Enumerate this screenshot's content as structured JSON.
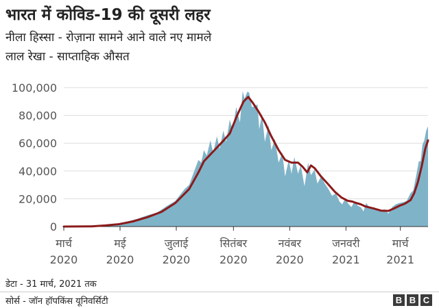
{
  "chart_data": {
    "type": "area",
    "title": "भारत में कोविड-19 की दूसरी लहर",
    "subtitle_lines": [
      "नीला हिस्सा - रोज़ाना सामने आने वाले नए मामले",
      "लाल रेखा - साप्ताहिक औसत"
    ],
    "xlabel": "",
    "ylabel": "",
    "ylim": [
      0,
      100000
    ],
    "yticks": [
      0,
      20000,
      40000,
      60000,
      80000,
      100000
    ],
    "ytick_labels": [
      "0",
      "20,000",
      "40,000",
      "60,000",
      "80,000",
      "100,000"
    ],
    "x_range": [
      "2020-03-01",
      "2021-03-31"
    ],
    "xticks": [
      {
        "date": "2020-03-01",
        "line1": "मार्च",
        "line2": "2020"
      },
      {
        "date": "2020-05-01",
        "line1": "मई",
        "line2": "2020"
      },
      {
        "date": "2020-07-01",
        "line1": "जुलाई",
        "line2": "2020"
      },
      {
        "date": "2020-09-01",
        "line1": "सितंबर",
        "line2": "2020"
      },
      {
        "date": "2020-11-01",
        "line1": "नवंबर",
        "line2": "2020"
      },
      {
        "date": "2021-01-01",
        "line1": "जनवरी",
        "line2": "2021"
      },
      {
        "date": "2021-03-01",
        "line1": "मार्च",
        "line2": "2021"
      }
    ],
    "grid": true,
    "series": [
      {
        "color": "#7fb3c8",
        "kind": "area",
        "points": [
          [
            "2020-03-01",
            0
          ],
          [
            "2020-03-15",
            20
          ],
          [
            "2020-03-31",
            200
          ],
          [
            "2020-04-10",
            700
          ],
          [
            "2020-04-20",
            1300
          ],
          [
            "2020-04-30",
            1900
          ],
          [
            "2020-05-10",
            3800
          ],
          [
            "2020-05-20",
            5600
          ],
          [
            "2020-05-31",
            8200
          ],
          [
            "2020-06-10",
            10000
          ],
          [
            "2020-06-20",
            14500
          ],
          [
            "2020-06-30",
            18500
          ],
          [
            "2020-07-10",
            27000
          ],
          [
            "2020-07-15",
            30000
          ],
          [
            "2020-07-20",
            39000
          ],
          [
            "2020-07-25",
            48000
          ],
          [
            "2020-07-28",
            46000
          ],
          [
            "2020-07-31",
            55000
          ],
          [
            "2020-08-03",
            51000
          ],
          [
            "2020-08-07",
            62000
          ],
          [
            "2020-08-10",
            53000
          ],
          [
            "2020-08-14",
            65000
          ],
          [
            "2020-08-17",
            56000
          ],
          [
            "2020-08-21",
            69000
          ],
          [
            "2020-08-24",
            61000
          ],
          [
            "2020-08-28",
            77000
          ],
          [
            "2020-08-31",
            69000
          ],
          [
            "2020-09-04",
            86000
          ],
          [
            "2020-09-08",
            75000
          ],
          [
            "2020-09-11",
            97500
          ],
          [
            "2020-09-13",
            92000
          ],
          [
            "2020-09-16",
            97000
          ],
          [
            "2020-09-18",
            96500
          ],
          [
            "2020-09-21",
            86000
          ],
          [
            "2020-09-24",
            86500
          ],
          [
            "2020-09-27",
            88000
          ],
          [
            "2020-09-29",
            70000
          ],
          [
            "2020-10-02",
            81000
          ],
          [
            "2020-10-05",
            61000
          ],
          [
            "2020-10-09",
            73000
          ],
          [
            "2020-10-12",
            55000
          ],
          [
            "2020-10-16",
            63000
          ],
          [
            "2020-10-20",
            46000
          ],
          [
            "2020-10-24",
            53000
          ],
          [
            "2020-10-27",
            36000
          ],
          [
            "2020-10-31",
            48000
          ],
          [
            "2020-11-03",
            38000
          ],
          [
            "2020-11-06",
            50000
          ],
          [
            "2020-11-10",
            38000
          ],
          [
            "2020-11-13",
            44000
          ],
          [
            "2020-11-17",
            29000
          ],
          [
            "2020-11-21",
            46000
          ],
          [
            "2020-11-24",
            37000
          ],
          [
            "2020-11-28",
            41000
          ],
          [
            "2020-12-01",
            31000
          ],
          [
            "2020-12-05",
            36000
          ],
          [
            "2020-12-09",
            31000
          ],
          [
            "2020-12-13",
            27000
          ],
          [
            "2020-12-17",
            22000
          ],
          [
            "2020-12-21",
            24000
          ],
          [
            "2020-12-25",
            18000
          ],
          [
            "2020-12-28",
            16000
          ],
          [
            "2020-12-31",
            20000
          ],
          [
            "2021-01-04",
            16000
          ],
          [
            "2021-01-07",
            14000
          ],
          [
            "2021-01-10",
            18000
          ],
          [
            "2021-01-14",
            15000
          ],
          [
            "2021-01-17",
            14000
          ],
          [
            "2021-01-20",
            11000
          ],
          [
            "2021-01-23",
            17000
          ],
          [
            "2021-01-27",
            13000
          ],
          [
            "2021-01-31",
            14000
          ],
          [
            "2021-02-04",
            12000
          ],
          [
            "2021-02-08",
            11000
          ],
          [
            "2021-02-12",
            12500
          ],
          [
            "2021-02-16",
            9300
          ],
          [
            "2021-02-20",
            14000
          ],
          [
            "2021-02-24",
            16000
          ],
          [
            "2021-02-28",
            17000
          ],
          [
            "2021-03-04",
            17500
          ],
          [
            "2021-03-08",
            18600
          ],
          [
            "2021-03-12",
            24000
          ],
          [
            "2021-03-15",
            26000
          ],
          [
            "2021-03-18",
            36000
          ],
          [
            "2021-03-21",
            47000
          ],
          [
            "2021-03-23",
            47000
          ],
          [
            "2021-03-25",
            59000
          ],
          [
            "2021-03-27",
            62000
          ],
          [
            "2021-03-29",
            69000
          ],
          [
            "2021-03-31",
            72000
          ]
        ]
      },
      {
        "color": "#8b1a1a",
        "kind": "line",
        "points": [
          [
            "2020-03-01",
            0
          ],
          [
            "2020-03-31",
            150
          ],
          [
            "2020-04-15",
            800
          ],
          [
            "2020-04-30",
            1700
          ],
          [
            "2020-05-15",
            3700
          ],
          [
            "2020-05-31",
            6800
          ],
          [
            "2020-06-15",
            10600
          ],
          [
            "2020-06-30",
            17000
          ],
          [
            "2020-07-15",
            27000
          ],
          [
            "2020-07-25",
            39000
          ],
          [
            "2020-07-31",
            47000
          ],
          [
            "2020-08-10",
            54000
          ],
          [
            "2020-08-20",
            61000
          ],
          [
            "2020-08-28",
            67000
          ],
          [
            "2020-09-05",
            80000
          ],
          [
            "2020-09-12",
            90000
          ],
          [
            "2020-09-17",
            93300
          ],
          [
            "2020-09-22",
            89000
          ],
          [
            "2020-09-28",
            83000
          ],
          [
            "2020-10-05",
            75000
          ],
          [
            "2020-10-12",
            65000
          ],
          [
            "2020-10-20",
            55000
          ],
          [
            "2020-10-27",
            48000
          ],
          [
            "2020-11-03",
            46000
          ],
          [
            "2020-11-10",
            46000
          ],
          [
            "2020-11-15",
            43000
          ],
          [
            "2020-11-20",
            39000
          ],
          [
            "2020-11-24",
            44000
          ],
          [
            "2020-11-28",
            42000
          ],
          [
            "2020-12-05",
            36000
          ],
          [
            "2020-12-12",
            31000
          ],
          [
            "2020-12-20",
            25000
          ],
          [
            "2020-12-27",
            21000
          ],
          [
            "2021-01-03",
            18500
          ],
          [
            "2021-01-08",
            18000
          ],
          [
            "2021-01-12",
            17000
          ],
          [
            "2021-01-17",
            16000
          ],
          [
            "2021-01-22",
            14500
          ],
          [
            "2021-01-31",
            13000
          ],
          [
            "2021-02-08",
            11500
          ],
          [
            "2021-02-16",
            11300
          ],
          [
            "2021-02-22",
            13000
          ],
          [
            "2021-02-28",
            15000
          ],
          [
            "2021-03-06",
            16500
          ],
          [
            "2021-03-12",
            19000
          ],
          [
            "2021-03-16",
            24000
          ],
          [
            "2021-03-20",
            32000
          ],
          [
            "2021-03-24",
            43000
          ],
          [
            "2021-03-28",
            56000
          ],
          [
            "2021-03-31",
            62000
          ]
        ]
      }
    ]
  },
  "footer": {
    "data_note": "डेटा - 31 मार्च, 2021 तक",
    "source": "सोर्स - जॉन हॉपकिंस यूनिवर्सिटी",
    "logo_letters": [
      "B",
      "B",
      "C"
    ]
  }
}
